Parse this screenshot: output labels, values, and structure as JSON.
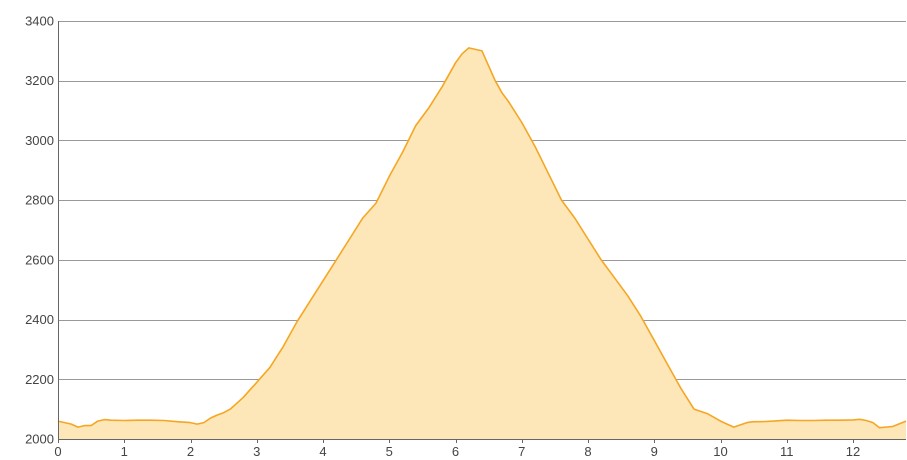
{
  "chart_data": {
    "type": "area",
    "title": "",
    "xlabel": "",
    "ylabel": "",
    "xlim": [
      0,
      12.8
    ],
    "ylim": [
      2000,
      3400
    ],
    "x_ticks": [
      0,
      1,
      2,
      3,
      4,
      5,
      6,
      7,
      8,
      9,
      10,
      11,
      12
    ],
    "y_ticks": [
      2000,
      2200,
      2400,
      2600,
      2800,
      3000,
      3200,
      3400
    ],
    "grid": "horizontal",
    "legend": "none",
    "colors": {
      "fill": "#fde7b8",
      "line": "#f5a623",
      "grid": "#999999"
    },
    "series": [
      {
        "x": [
          0,
          0.2,
          0.3,
          0.4,
          0.5,
          0.6,
          0.7,
          0.8,
          1.0,
          1.2,
          1.4,
          1.6,
          1.8,
          2.0,
          2.1,
          2.2,
          2.3,
          2.4,
          2.5,
          2.6,
          2.7,
          2.8,
          2.9,
          3.0,
          3.2,
          3.4,
          3.6,
          3.8,
          4.0,
          4.2,
          4.4,
          4.6,
          4.8,
          5.0,
          5.2,
          5.4,
          5.6,
          5.8,
          6.0,
          6.1,
          6.2,
          6.3,
          6.4,
          6.5,
          6.6,
          6.7,
          6.8,
          7.0,
          7.2,
          7.4,
          7.6,
          7.8,
          8.0,
          8.2,
          8.4,
          8.6,
          8.8,
          9.0,
          9.2,
          9.4,
          9.6,
          9.8,
          10.0,
          10.2,
          10.4,
          10.5,
          10.6,
          10.7,
          10.8,
          11.0,
          11.2,
          11.4,
          11.6,
          11.8,
          12.0,
          12.1,
          12.2,
          12.3,
          12.4,
          12.6,
          12.8
        ],
        "values": [
          2060,
          2050,
          2040,
          2045,
          2045,
          2060,
          2065,
          2063,
          2062,
          2063,
          2063,
          2062,
          2058,
          2055,
          2050,
          2055,
          2070,
          2080,
          2088,
          2100,
          2120,
          2140,
          2165,
          2190,
          2240,
          2310,
          2390,
          2460,
          2530,
          2600,
          2670,
          2740,
          2790,
          2880,
          2960,
          3050,
          3110,
          3180,
          3260,
          3290,
          3310,
          3305,
          3300,
          3250,
          3200,
          3160,
          3130,
          3060,
          2980,
          2890,
          2800,
          2740,
          2670,
          2600,
          2540,
          2480,
          2410,
          2330,
          2250,
          2170,
          2100,
          2085,
          2060,
          2040,
          2055,
          2058,
          2058,
          2059,
          2060,
          2063,
          2062,
          2062,
          2063,
          2063,
          2064,
          2066,
          2062,
          2055,
          2038,
          2042,
          2060
        ]
      }
    ]
  }
}
